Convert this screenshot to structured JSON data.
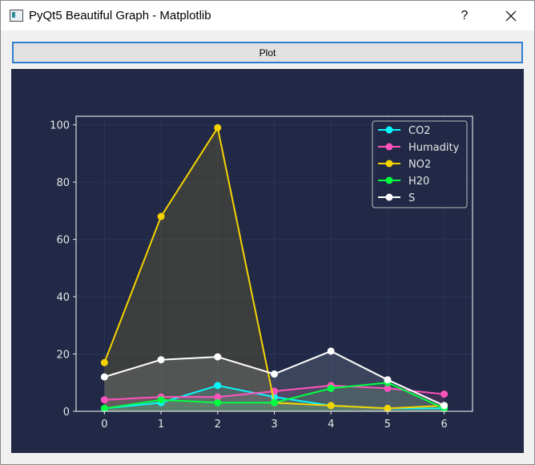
{
  "window": {
    "title": "PyQt5 Beautiful Graph - Matplotlib",
    "help_label": "?"
  },
  "toolbar": {
    "plot_label": "Plot"
  },
  "colors": {
    "background": "#212946",
    "grid": "#2A3459",
    "axes_frame": "#ffffff",
    "text": "#e6e6e6"
  },
  "chart_data": {
    "type": "line",
    "x": [
      0,
      1,
      2,
      3,
      4,
      5,
      6
    ],
    "xlim": [
      -0.5,
      6.5
    ],
    "ylim": [
      0,
      103
    ],
    "xticks": [
      0,
      1,
      2,
      3,
      4,
      5,
      6
    ],
    "yticks": [
      0,
      20,
      40,
      60,
      80,
      100
    ],
    "grid": true,
    "legend_position": "top-right",
    "series": [
      {
        "name": "CO2",
        "color": "#08F7FE",
        "values": [
          1,
          3,
          9,
          5,
          2,
          1,
          1
        ]
      },
      {
        "name": "Humadity",
        "color": "#FE53BB",
        "values": [
          4,
          5,
          5,
          7,
          9,
          8,
          6
        ]
      },
      {
        "name": "NO2",
        "color": "#F5D300",
        "values": [
          17,
          68,
          99,
          3,
          2,
          1,
          2
        ]
      },
      {
        "name": "H20",
        "color": "#00ff41",
        "values": [
          1,
          4,
          3,
          3,
          8,
          10,
          1
        ]
      },
      {
        "name": "S",
        "color": "#FFFFFF",
        "values": [
          12,
          18,
          19,
          13,
          21,
          11,
          2
        ]
      }
    ]
  }
}
